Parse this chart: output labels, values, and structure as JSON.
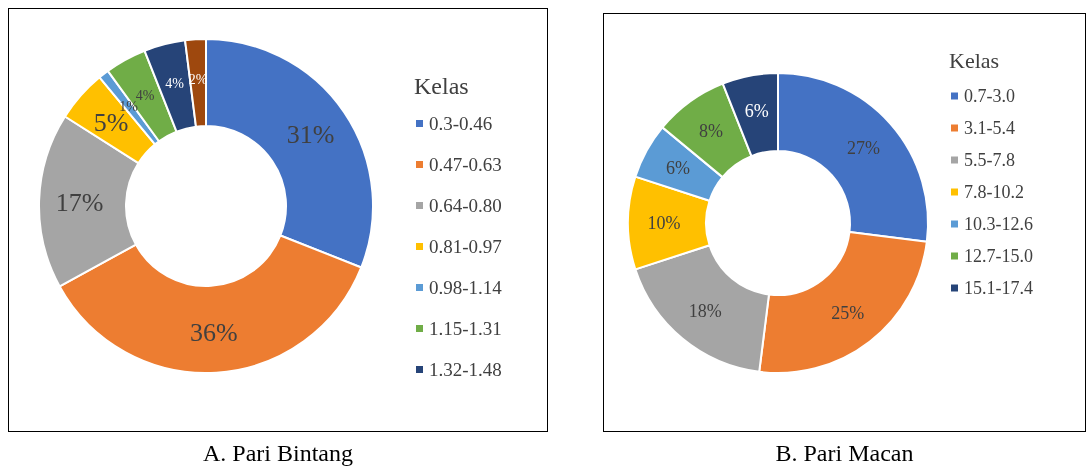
{
  "chart_data": [
    {
      "type": "donut",
      "title": "A.  Pari Bintang",
      "legend_title": "Kelas",
      "legend": "right",
      "categories": [
        "0.3-0.46",
        "0.47-0.63",
        "0.64-0.80",
        "0.81-0.97",
        "0.98-1.14",
        "1.15-1.31",
        "1.32-1.48",
        null
      ],
      "values": [
        31,
        36,
        17,
        5,
        1,
        4,
        4,
        2
      ],
      "value_labels": [
        "31%",
        "36%",
        "17%",
        "5%",
        "1%",
        "4%",
        "4%",
        "2%"
      ],
      "colors": [
        "#4472c4",
        "#ed7d31",
        "#a5a5a5",
        "#ffc000",
        "#5b9bd5",
        "#70ad47",
        "#264478",
        "#9e480e"
      ]
    },
    {
      "type": "donut",
      "title": "B.    Pari Macan",
      "legend_title": "Kelas",
      "legend": "right",
      "categories": [
        "0.7-3.0",
        "3.1-5.4",
        "5.5-7.8",
        "7.8-10.2",
        "10.3-12.6",
        "12.7-15.0",
        "15.1-17.4"
      ],
      "values": [
        27,
        25,
        18,
        10,
        6,
        8,
        6
      ],
      "value_labels": [
        "27%",
        "25%",
        "18%",
        "10%",
        "6%",
        "8%",
        "6%"
      ],
      "colors": [
        "#4472c4",
        "#ed7d31",
        "#a5a5a5",
        "#ffc000",
        "#5b9bd5",
        "#70ad47",
        "#264478"
      ]
    }
  ]
}
